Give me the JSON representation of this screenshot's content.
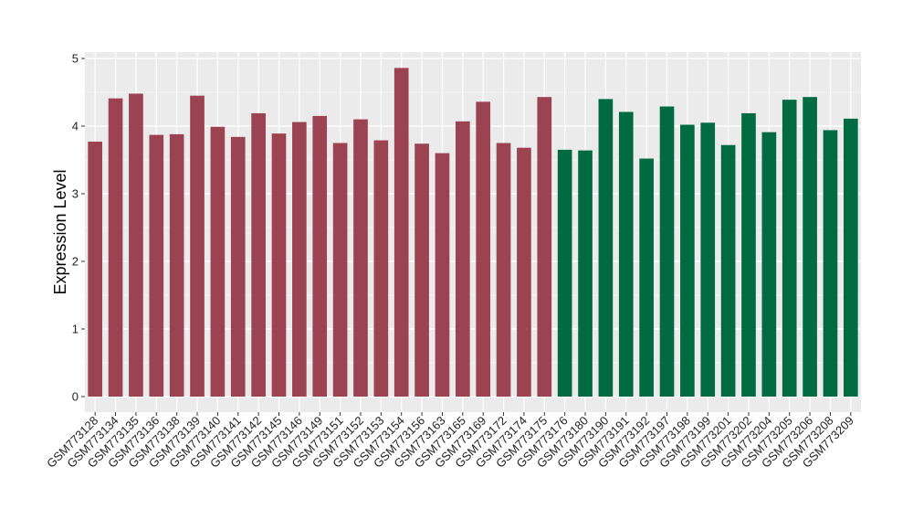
{
  "chart_data": {
    "type": "bar",
    "title": "",
    "xlabel": "",
    "ylabel": "Expression Level",
    "ylim": [
      0,
      5.15
    ],
    "yticks": [
      0,
      1,
      2,
      3,
      4,
      5
    ],
    "grid": true,
    "legend": "none",
    "colors": {
      "group1": "#9b4350",
      "group2": "#006a43",
      "panel": "#ebebeb",
      "grid": "#ffffff"
    },
    "categories": [
      "GSM773128",
      "GSM773134",
      "GSM773135",
      "GSM773136",
      "GSM773138",
      "GSM773139",
      "GSM773140",
      "GSM773141",
      "GSM773142",
      "GSM773145",
      "GSM773146",
      "GSM773149",
      "GSM773151",
      "GSM773152",
      "GSM773153",
      "GSM773154",
      "GSM773156",
      "GSM773163",
      "GSM773165",
      "GSM773169",
      "GSM773172",
      "GSM773174",
      "GSM773175",
      "GSM773176",
      "GSM773180",
      "GSM773190",
      "GSM773191",
      "GSM773192",
      "GSM773197",
      "GSM773198",
      "GSM773199",
      "GSM773201",
      "GSM773202",
      "GSM773204",
      "GSM773205",
      "GSM773206",
      "GSM773208",
      "GSM773209"
    ],
    "values": [
      3.77,
      4.41,
      4.48,
      3.87,
      3.88,
      4.45,
      3.99,
      3.84,
      4.19,
      3.89,
      4.06,
      4.15,
      3.75,
      4.1,
      3.79,
      4.86,
      3.74,
      3.6,
      4.07,
      4.36,
      3.75,
      3.68,
      4.43,
      3.65,
      3.64,
      4.4,
      4.21,
      3.52,
      4.29,
      4.02,
      4.05,
      3.72,
      4.19,
      3.91,
      4.39,
      4.43,
      3.94,
      4.11
    ],
    "groups": [
      1,
      1,
      1,
      1,
      1,
      1,
      1,
      1,
      1,
      1,
      1,
      1,
      1,
      1,
      1,
      1,
      1,
      1,
      1,
      1,
      1,
      1,
      1,
      2,
      2,
      2,
      2,
      2,
      2,
      2,
      2,
      2,
      2,
      2,
      2,
      2,
      2,
      2
    ]
  }
}
